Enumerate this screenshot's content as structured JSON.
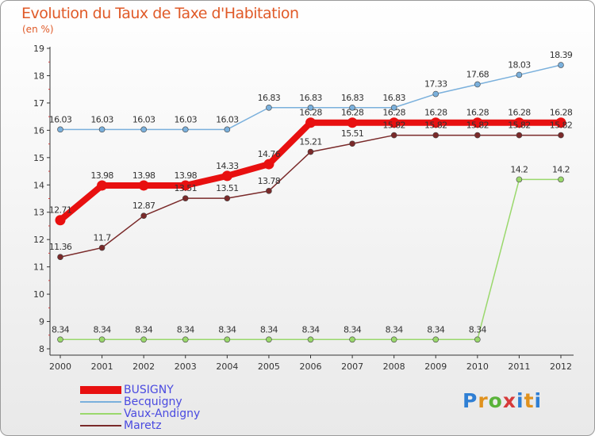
{
  "header": {
    "title": "Evolution du Taux de Taxe d'Habitation",
    "unit": "(en %)"
  },
  "brand": {
    "p": "P",
    "r": "r",
    "o": "o",
    "x": "x",
    "i": "i",
    "t": "t",
    "i2": "i"
  },
  "chart_data": {
    "type": "line",
    "title": "Evolution du Taux de Taxe d'Habitation",
    "ylabel": "(en %)",
    "xlabel": "",
    "x": [
      "2000",
      "2001",
      "2002",
      "2003",
      "2004",
      "2005",
      "2006",
      "2007",
      "2008",
      "2009",
      "2010",
      "2011",
      "2012"
    ],
    "yticks": [
      "8",
      "9",
      "10",
      "11",
      "12",
      "13",
      "14",
      "15",
      "16",
      "17",
      "18",
      "19"
    ],
    "ylim": [
      8,
      19
    ],
    "grid": false,
    "legend_position": "bottom-left",
    "series": [
      {
        "name": "BUSIGNY",
        "color": "#e81010",
        "values": [
          12.71,
          13.98,
          13.98,
          13.98,
          14.33,
          14.76,
          16.28,
          16.28,
          16.28,
          16.28,
          16.28,
          16.28,
          16.28
        ],
        "labels": [
          "12.71",
          "13.98",
          "13.98",
          "13.98",
          "14.33",
          "14.76",
          "16.28",
          "16.28",
          "16.28",
          "16.28",
          "16.28",
          "16.28",
          "16.28"
        ]
      },
      {
        "name": "Becquigny",
        "color": "#7ab0dc",
        "values": [
          16.03,
          16.03,
          16.03,
          16.03,
          16.03,
          16.83,
          16.83,
          16.83,
          16.83,
          17.33,
          17.68,
          18.03,
          18.39
        ],
        "labels": [
          "16.03",
          "16.03",
          "16.03",
          "16.03",
          "16.03",
          "16.83",
          "16.83",
          "16.83",
          "16.83",
          "17.33",
          "17.68",
          "18.03",
          "18.39"
        ]
      },
      {
        "name": "Vaux-Andigny",
        "color": "#9ad86c",
        "values": [
          8.34,
          8.34,
          8.34,
          8.34,
          8.34,
          8.34,
          8.34,
          8.34,
          8.34,
          8.34,
          8.34,
          14.2,
          14.2
        ],
        "labels": [
          "8.34",
          "8.34",
          "8.34",
          "8.34",
          "8.34",
          "8.34",
          "8.34",
          "8.34",
          "8.34",
          "8.34",
          "8.34",
          "14.2",
          "14.2"
        ]
      },
      {
        "name": "Maretz",
        "color": "#7a2a2a",
        "values": [
          11.36,
          11.7,
          12.87,
          13.51,
          13.51,
          13.78,
          15.21,
          15.51,
          15.82,
          15.82,
          15.82,
          15.82,
          15.82
        ],
        "labels": [
          "11.36",
          "11.7",
          "12.87",
          "13.51",
          "13.51",
          "13.78",
          "15.21",
          "15.51",
          "15.82",
          "15.82",
          "15.82",
          "15.82",
          "15.82"
        ]
      }
    ]
  }
}
